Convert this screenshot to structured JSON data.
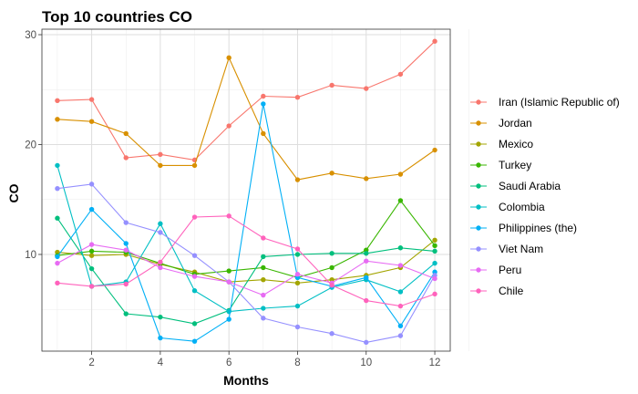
{
  "chart_data": {
    "type": "line",
    "title": "Top 10 countries CO",
    "xlabel": "Months",
    "ylabel": "CO",
    "xlim": [
      0.55,
      12.45
    ],
    "ylim": [
      1.2,
      30.5
    ],
    "x_ticks": [
      2,
      4,
      6,
      8,
      10,
      12
    ],
    "y_ticks": [
      10,
      20,
      30
    ],
    "grid": true,
    "legend_position": "right",
    "x": [
      1,
      2,
      3,
      4,
      5,
      6,
      7,
      8,
      9,
      10,
      11,
      12
    ],
    "series": [
      {
        "name": "Iran (Islamic Republic of)",
        "color": "#F8766D",
        "values": [
          24.0,
          24.1,
          18.8,
          19.1,
          18.6,
          21.7,
          24.4,
          24.3,
          25.4,
          25.1,
          26.4,
          29.4
        ]
      },
      {
        "name": "Jordan",
        "color": "#D89000",
        "values": [
          22.3,
          22.1,
          21.0,
          18.1,
          18.1,
          27.9,
          21.0,
          16.8,
          17.4,
          16.9,
          17.3,
          19.5
        ]
      },
      {
        "name": "Mexico",
        "color": "#A3A500",
        "values": [
          10.2,
          9.9,
          10.0,
          9.1,
          8.4,
          7.5,
          7.7,
          7.4,
          7.7,
          8.1,
          8.8,
          11.3
        ]
      },
      {
        "name": "Turkey",
        "color": "#39B600",
        "values": [
          9.9,
          10.3,
          10.2,
          9.2,
          8.2,
          8.5,
          8.8,
          7.9,
          8.8,
          10.4,
          14.9,
          10.8
        ]
      },
      {
        "name": "Saudi Arabia",
        "color": "#00BF7D",
        "values": [
          13.3,
          8.7,
          4.6,
          4.3,
          3.7,
          4.9,
          9.8,
          10.0,
          10.1,
          10.1,
          10.6,
          10.3
        ]
      },
      {
        "name": "Colombia",
        "color": "#00BFC4",
        "values": [
          18.1,
          7.1,
          7.5,
          12.8,
          6.7,
          4.8,
          5.1,
          5.3,
          7.0,
          7.7,
          6.6,
          9.2
        ]
      },
      {
        "name": "Philippines (the)",
        "color": "#00B0F6",
        "values": [
          9.8,
          14.1,
          11.0,
          2.4,
          2.1,
          4.1,
          23.7,
          7.9,
          7.1,
          7.9,
          3.5,
          8.4
        ]
      },
      {
        "name": "Viet Nam",
        "color": "#9590FF",
        "values": [
          16.0,
          16.4,
          12.9,
          12.0,
          9.9,
          7.5,
          4.2,
          3.4,
          2.8,
          2.0,
          2.6,
          8.1
        ]
      },
      {
        "name": "Peru",
        "color": "#E76BF3",
        "values": [
          9.2,
          10.9,
          10.4,
          8.8,
          8.0,
          7.5,
          6.3,
          8.2,
          7.4,
          9.4,
          9.0,
          7.8
        ]
      },
      {
        "name": "Chile",
        "color": "#FF62BC",
        "values": [
          7.4,
          7.1,
          7.3,
          9.3,
          13.4,
          13.5,
          11.5,
          10.5,
          7.2,
          5.8,
          5.3,
          6.4
        ]
      }
    ]
  }
}
